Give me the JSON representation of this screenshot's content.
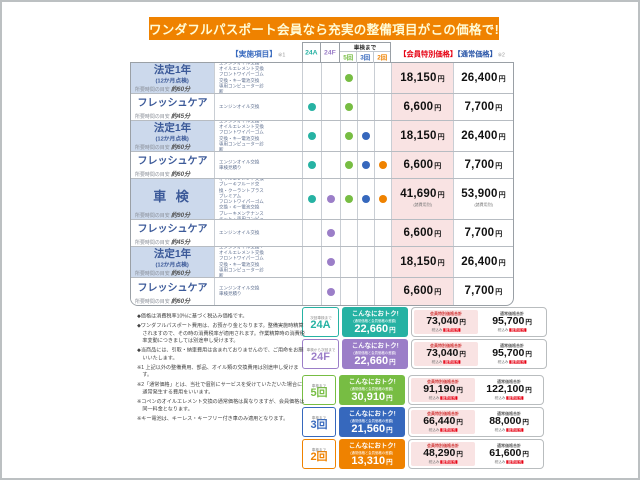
{
  "banner": {
    "title": "ワンダフルパスポート会員なら充実の整備項目がこの価格で!"
  },
  "colors": {
    "accent_orange": "#ef8200",
    "teal": "#26b2a3",
    "purple": "#9b7ec8",
    "green": "#77bd43",
    "blue": "#3668bd",
    "red": "#e60012",
    "navy": "#3c5a99",
    "member_bg": "#f9e3e3"
  },
  "table": {
    "header": {
      "items_label": "【実施項目】",
      "items_note": "※1",
      "col_24a": "24A",
      "col_24f": "24F",
      "shaken_made": "車検まで",
      "col_5": "5回",
      "col_3": "3回",
      "col_2": "2回",
      "member_label": "【会員特別価格】",
      "normal_label": "【通常価格】",
      "normal_note": "※2"
    },
    "time_prefix": "所要時間の目安",
    "currency": "円",
    "dot_colors": [
      "teal",
      "purple",
      "green",
      "blue",
      "orange_key"
    ],
    "rows": [
      {
        "type": "hotei",
        "name": "法定1年",
        "sub": "(12か月点検)",
        "time": "約60分",
        "desc": [
          "エンジンオイル交換・オイルエレメント交換",
          "フロントワイパーゴム交換・キー電池交換",
          "専用コンピューター診断"
        ],
        "dots": [
          false,
          false,
          true,
          false,
          false
        ],
        "member": "18,150",
        "normal": "26,400",
        "price_note": ""
      },
      {
        "type": "fresh",
        "name": "フレッシュケア",
        "sub": "",
        "time": "約45分",
        "desc": [
          "エンジンオイル交換"
        ],
        "dots": [
          true,
          false,
          true,
          false,
          false
        ],
        "member": "6,600",
        "normal": "7,700",
        "price_note": ""
      },
      {
        "type": "hotei",
        "name": "法定1年",
        "sub": "(12か月点検)",
        "time": "約60分",
        "desc": [
          "エンジンオイル交換・オイルエレメント交換",
          "フロントワイパーゴム交換・キー電池交換",
          "専用コンピューター診断"
        ],
        "dots": [
          true,
          false,
          true,
          true,
          false
        ],
        "member": "18,150",
        "normal": "26,400",
        "price_note": ""
      },
      {
        "type": "fresh",
        "name": "フレッシュケア",
        "sub": "",
        "time": "約60分",
        "desc": [
          "エンジンオイル交換",
          "車検見積り"
        ],
        "dots": [
          true,
          false,
          true,
          true,
          true
        ],
        "member": "6,600",
        "normal": "7,700",
        "price_note": ""
      },
      {
        "type": "shaken",
        "name": "車 検",
        "sub": "",
        "time": "約90分",
        "desc": [
          "エンジンオイル交換・オイルエレメント交換",
          "ブレーキフルード交換・クーラントプラスプレミアム",
          "フロントワイパーゴム交換・キー電池交換",
          "ブレーキメンテナンスキット・専用コンピューター診断"
        ],
        "dots": [
          true,
          true,
          true,
          true,
          true
        ],
        "member": "41,690",
        "normal": "53,900",
        "price_note": "(諸費用別)"
      },
      {
        "type": "fresh",
        "name": "フレッシュケア",
        "sub": "",
        "time": "約45分",
        "desc": [
          "エンジンオイル交換"
        ],
        "dots": [
          false,
          true,
          false,
          false,
          false
        ],
        "member": "6,600",
        "normal": "7,700",
        "price_note": ""
      },
      {
        "type": "hotei",
        "name": "法定1年",
        "sub": "(12か月点検)",
        "time": "約60分",
        "desc": [
          "エンジンオイル交換・オイルエレメント交換",
          "フロントワイパーゴム交換・キー電池交換",
          "専用コンピューター診断"
        ],
        "dots": [
          false,
          true,
          false,
          false,
          false
        ],
        "member": "18,150",
        "normal": "26,400",
        "price_note": ""
      },
      {
        "type": "fresh",
        "name": "フレッシュケア",
        "sub": "",
        "time": "約60分",
        "desc": [
          "エンジンオイル交換",
          "車検見積り"
        ],
        "dots": [
          false,
          true,
          false,
          false,
          false
        ],
        "member": "6,600",
        "normal": "7,700",
        "price_note": ""
      }
    ]
  },
  "notes": [
    "◆価格は消費税率10%に基づく税込み価格です。",
    "◆ワンダフルパスポート費用は、お預かり金となります。整備実施時精算されますので、その時の消費税率が適用されます。作業精算時の消費税率変動につきましては別途申し受けます。",
    "◆当商品には、引取・納車費用は含まれておりませんので、ご用命をお願いいたします。",
    "※1 上記以外の整備費用、部品、オイル類の交換費用は別途申し受けます。",
    "※2「通常価格」とは、当社で個別にサービスを受けていただいた場合に通常発生する費用をいいます。",
    "※コペンのオイルエレメント交換の通常価格は異なりますが、会員価格は同一料金となります。",
    "※キー電池は、キーレス・キーフリー付き車のみ適用となります。"
  ],
  "summary": {
    "otoku_title": "こんなにおトク!",
    "otoku_sub": "(通常価格と会員価格の差額)",
    "member_total_label": "会員特別価格合計",
    "normal_total_label": "通常価格合計",
    "tax_note": "税込み",
    "fee_badge": "諸費用別",
    "rows": [
      {
        "period": "次回車検まで",
        "code": "24A",
        "color_key": "teal",
        "otoku": "22,660",
        "member_total": "73,040",
        "normal_total": "95,700"
      },
      {
        "period": "車検から次回まで",
        "code": "24F",
        "color_key": "purple",
        "otoku": "22,660",
        "member_total": "73,040",
        "normal_total": "95,700"
      },
      {
        "period": "車検まで",
        "code": "5回",
        "color_key": "green",
        "otoku": "30,910",
        "member_total": "91,190",
        "normal_total": "122,100"
      },
      {
        "period": "車検まで",
        "code": "3回",
        "color_key": "blue",
        "otoku": "21,560",
        "member_total": "66,440",
        "normal_total": "88,000"
      },
      {
        "period": "車検まで",
        "code": "2回",
        "color_key": "accent_orange",
        "otoku": "13,310",
        "member_total": "48,290",
        "normal_total": "61,600"
      }
    ]
  }
}
